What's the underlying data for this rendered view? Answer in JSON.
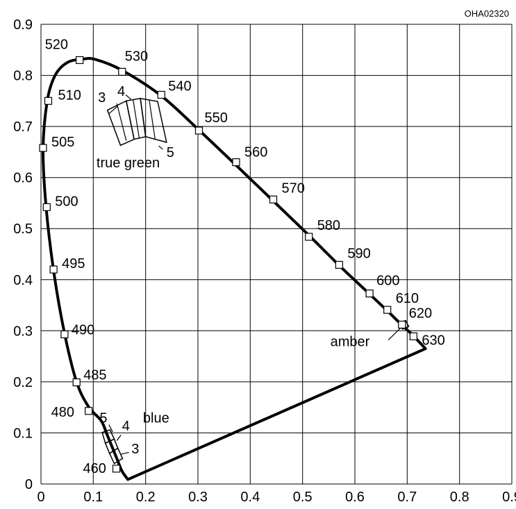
{
  "chart_data": {
    "type": "scatter",
    "id_code": "OHA02320",
    "xlim": [
      0,
      0.9
    ],
    "ylim": [
      0,
      0.9
    ],
    "x_ticks": [
      0,
      0.1,
      0.2,
      0.3,
      0.4,
      0.5,
      0.6,
      0.7,
      0.8,
      0.9
    ],
    "y_ticks": [
      0,
      0.1,
      0.2,
      0.3,
      0.4,
      0.5,
      0.6,
      0.7,
      0.8,
      0.9
    ],
    "x_tick_labels": [
      "0",
      "0.1",
      "0.2",
      "0.3",
      "0.4",
      "0.5",
      "0.6",
      "0.7",
      "0.8",
      "0.9"
    ],
    "y_tick_labels": [
      "0",
      "0.1",
      "0.2",
      "0.3",
      "0.4",
      "0.5",
      "0.6",
      "0.7",
      "0.8",
      "0.9"
    ],
    "grid": true,
    "spectral_locus": [
      [
        0.166,
        0.009
      ],
      [
        0.155,
        0.025
      ],
      [
        0.145,
        0.05
      ],
      [
        0.127,
        0.095
      ],
      [
        0.115,
        0.124
      ],
      [
        0.091,
        0.151
      ],
      [
        0.068,
        0.2
      ],
      [
        0.045,
        0.295
      ],
      [
        0.025,
        0.412
      ],
      [
        0.01,
        0.54
      ],
      [
        0.004,
        0.655
      ],
      [
        0.012,
        0.75
      ],
      [
        0.027,
        0.8
      ],
      [
        0.05,
        0.825
      ],
      [
        0.08,
        0.832
      ],
      [
        0.105,
        0.831
      ],
      [
        0.155,
        0.81
      ],
      [
        0.23,
        0.76
      ],
      [
        0.305,
        0.69
      ],
      [
        0.374,
        0.623
      ],
      [
        0.442,
        0.556
      ],
      [
        0.512,
        0.487
      ],
      [
        0.573,
        0.425
      ],
      [
        0.628,
        0.372
      ],
      [
        0.662,
        0.339
      ],
      [
        0.69,
        0.311
      ],
      [
        0.708,
        0.294
      ],
      [
        0.735,
        0.265
      ]
    ],
    "purple_line": [
      [
        0.735,
        0.265
      ],
      [
        0.166,
        0.009
      ]
    ],
    "wavelength_markers": [
      {
        "label": "460",
        "x": 0.144,
        "y": 0.03
      },
      {
        "label": "480",
        "x": 0.091,
        "y": 0.143
      },
      {
        "label": "485",
        "x": 0.068,
        "y": 0.199
      },
      {
        "label": "490",
        "x": 0.045,
        "y": 0.293
      },
      {
        "label": "495",
        "x": 0.024,
        "y": 0.42
      },
      {
        "label": "500",
        "x": 0.011,
        "y": 0.542
      },
      {
        "label": "505",
        "x": 0.004,
        "y": 0.658
      },
      {
        "label": "510",
        "x": 0.014,
        "y": 0.75
      },
      {
        "label": "520",
        "x": 0.074,
        "y": 0.83
      },
      {
        "label": "530",
        "x": 0.155,
        "y": 0.807
      },
      {
        "label": "540",
        "x": 0.23,
        "y": 0.762
      },
      {
        "label": "550",
        "x": 0.302,
        "y": 0.692
      },
      {
        "label": "560",
        "x": 0.373,
        "y": 0.63
      },
      {
        "label": "570",
        "x": 0.444,
        "y": 0.557
      },
      {
        "label": "580",
        "x": 0.512,
        "y": 0.484
      },
      {
        "label": "590",
        "x": 0.57,
        "y": 0.429
      },
      {
        "label": "600",
        "x": 0.628,
        "y": 0.373
      },
      {
        "label": "610",
        "x": 0.662,
        "y": 0.341
      },
      {
        "label": "620",
        "x": 0.69,
        "y": 0.312
      },
      {
        "label": "630",
        "x": 0.712,
        "y": 0.289
      }
    ],
    "green_bins": [
      {
        "label": "3",
        "points": [
          [
            0.127,
            0.732
          ],
          [
            0.163,
            0.75
          ],
          [
            0.178,
            0.675
          ],
          [
            0.152,
            0.663
          ]
        ]
      },
      {
        "label": "4",
        "points": [
          [
            0.163,
            0.75
          ],
          [
            0.19,
            0.755
          ],
          [
            0.2,
            0.68
          ],
          [
            0.178,
            0.675
          ]
        ]
      },
      {
        "label": "5",
        "points": [
          [
            0.19,
            0.755
          ],
          [
            0.223,
            0.749
          ],
          [
            0.24,
            0.669
          ],
          [
            0.2,
            0.68
          ]
        ]
      }
    ],
    "green_inner_lines": [
      [
        [
          0.145,
          0.745
        ],
        [
          0.163,
          0.672
        ]
      ],
      [
        [
          0.176,
          0.753
        ],
        [
          0.188,
          0.676
        ]
      ],
      [
        [
          0.207,
          0.752
        ],
        [
          0.218,
          0.676
        ]
      ]
    ],
    "blue_bins": [
      {
        "label": "3",
        "points": [
          [
            0.131,
            0.06
          ],
          [
            0.147,
            0.07
          ],
          [
            0.156,
            0.05
          ],
          [
            0.14,
            0.04
          ]
        ]
      },
      {
        "label": "4",
        "points": [
          [
            0.123,
            0.08
          ],
          [
            0.14,
            0.088
          ],
          [
            0.147,
            0.07
          ],
          [
            0.131,
            0.06
          ]
        ]
      },
      {
        "label": "5",
        "points": [
          [
            0.117,
            0.101
          ],
          [
            0.132,
            0.106
          ],
          [
            0.14,
            0.088
          ],
          [
            0.123,
            0.08
          ]
        ]
      }
    ],
    "amber_bin": [
      [
        0.685,
        0.316
      ],
      [
        0.697,
        0.32
      ],
      [
        0.703,
        0.308
      ],
      [
        0.691,
        0.303
      ]
    ],
    "annotations": [
      {
        "name": "true-green-label",
        "text": "true green",
        "x": 0.106,
        "y": 0.62
      },
      {
        "name": "green-bin-3-label",
        "text": "3",
        "x": 0.109,
        "y": 0.748
      },
      {
        "name": "green-bin-4-label",
        "text": "4",
        "x": 0.146,
        "y": 0.76
      },
      {
        "name": "green-bin-5-label",
        "text": "5",
        "x": 0.24,
        "y": 0.64
      },
      {
        "name": "blue-label",
        "text": "blue",
        "x": 0.195,
        "y": 0.12
      },
      {
        "name": "blue-bin-5-label",
        "text": "5",
        "x": 0.112,
        "y": 0.12
      },
      {
        "name": "blue-bin-4-label",
        "text": "4",
        "x": 0.155,
        "y": 0.105
      },
      {
        "name": "blue-bin-3-label",
        "text": "3",
        "x": 0.173,
        "y": 0.06
      },
      {
        "name": "amber-label",
        "text": "amber",
        "x": 0.553,
        "y": 0.27
      }
    ],
    "leader_lines": [
      [
        [
          0.13,
          0.725
        ],
        [
          0.147,
          0.74
        ]
      ],
      [
        [
          0.162,
          0.762
        ],
        [
          0.172,
          0.753
        ]
      ],
      [
        [
          0.233,
          0.655
        ],
        [
          0.225,
          0.662
        ]
      ],
      [
        [
          0.13,
          0.116
        ],
        [
          0.137,
          0.102
        ]
      ],
      [
        [
          0.153,
          0.096
        ],
        [
          0.145,
          0.085
        ]
      ],
      [
        [
          0.168,
          0.062
        ],
        [
          0.152,
          0.058
        ]
      ],
      [
        [
          0.664,
          0.282
        ],
        [
          0.69,
          0.308
        ]
      ]
    ]
  }
}
